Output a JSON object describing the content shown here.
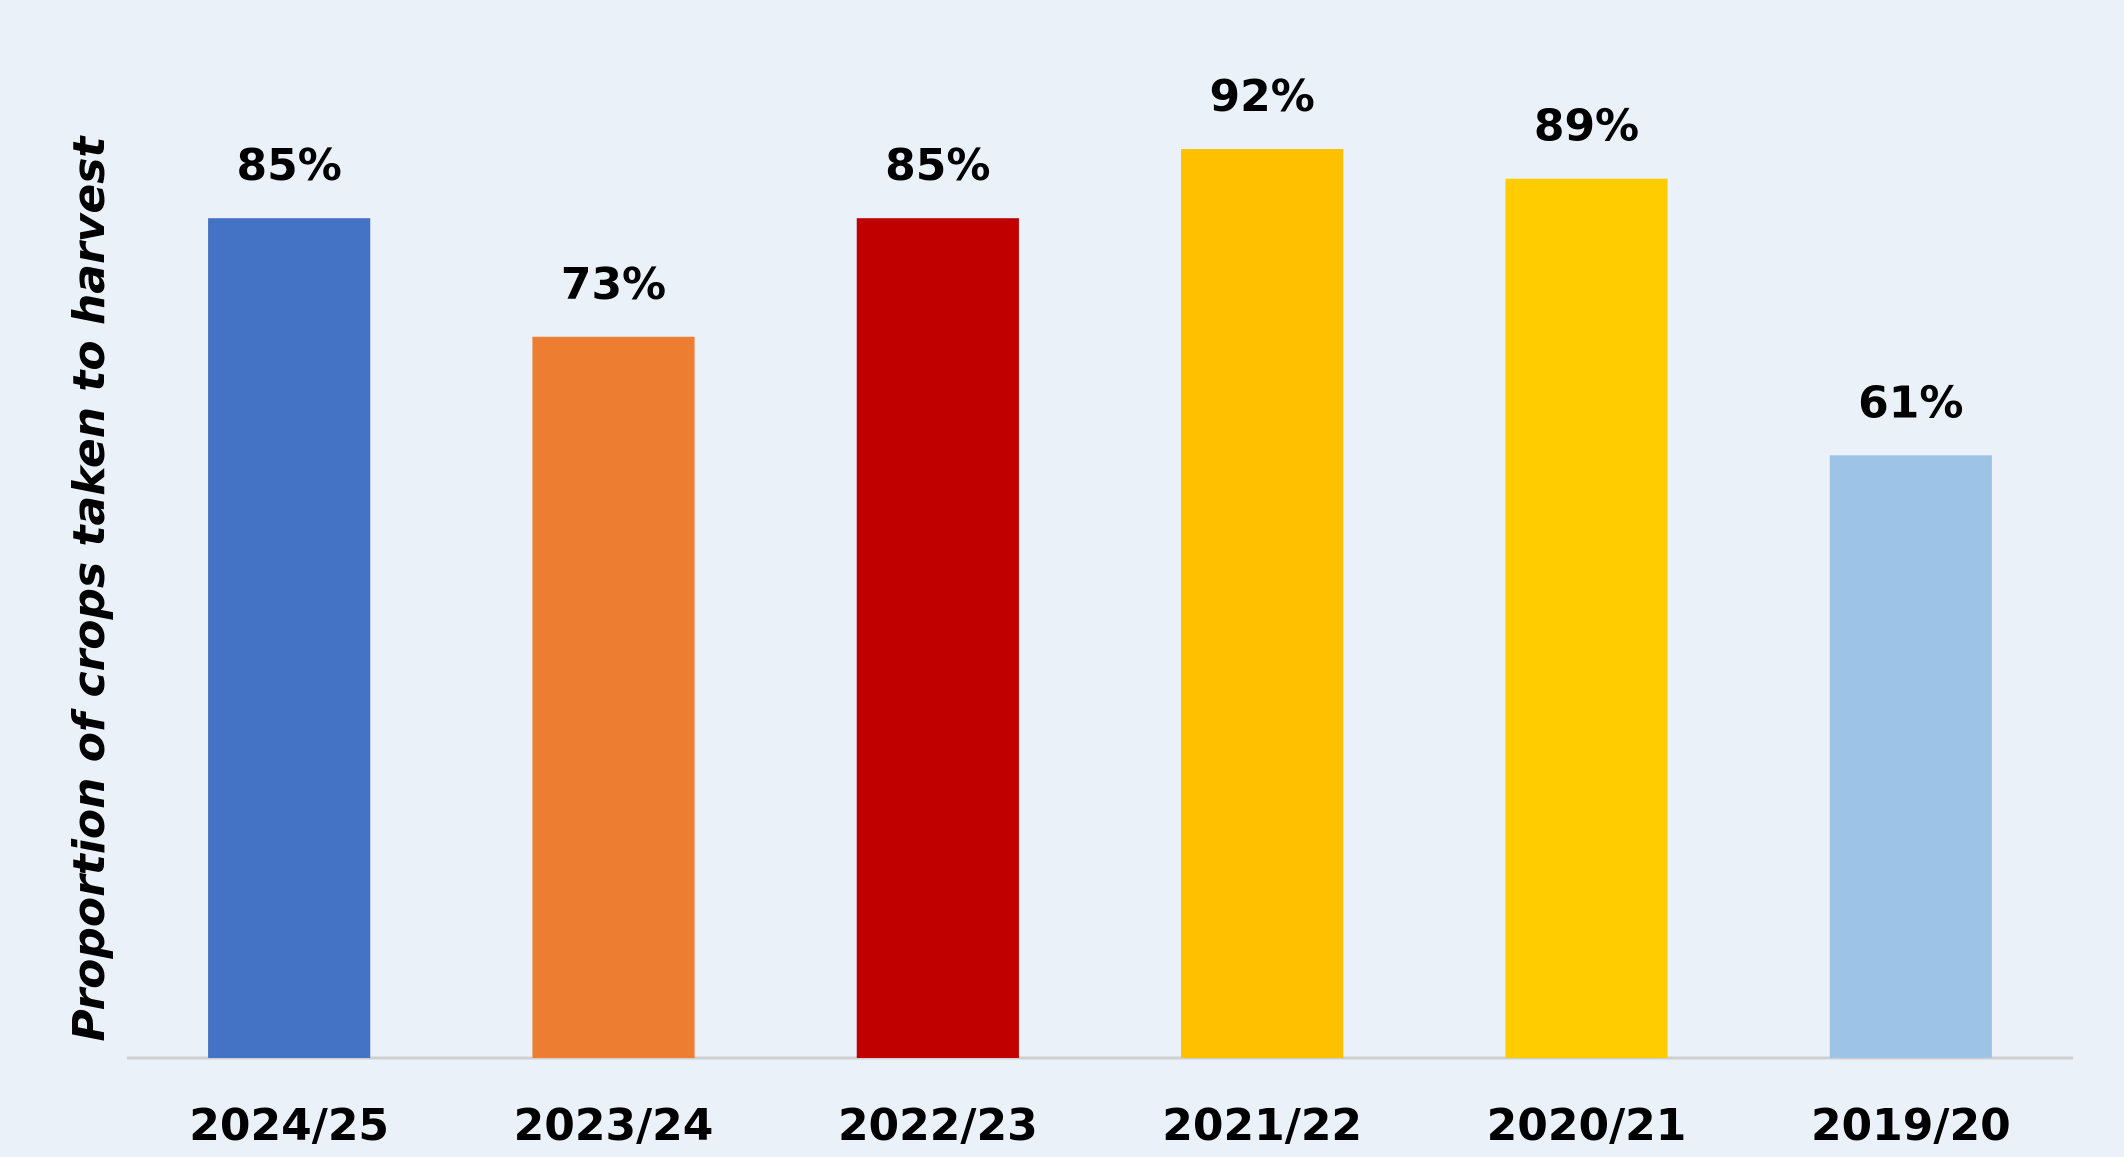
{
  "chart_data": {
    "type": "bar",
    "y_label": "Proportion of crops taken to harvest",
    "categories": [
      "2024/25",
      "2023/24",
      "2022/23",
      "2021/22",
      "2020/21",
      "2019/20"
    ],
    "values": [
      85,
      73,
      85,
      92,
      89,
      61
    ],
    "value_labels": [
      "85%",
      "73%",
      "85%",
      "92%",
      "89%",
      "61%"
    ],
    "colors": [
      "#4472c4",
      "#ed7d31",
      "#c00000",
      "#ffc000",
      "#ffcc00",
      "#9dc3e6"
    ],
    "ylim": [
      0,
      100
    ]
  }
}
